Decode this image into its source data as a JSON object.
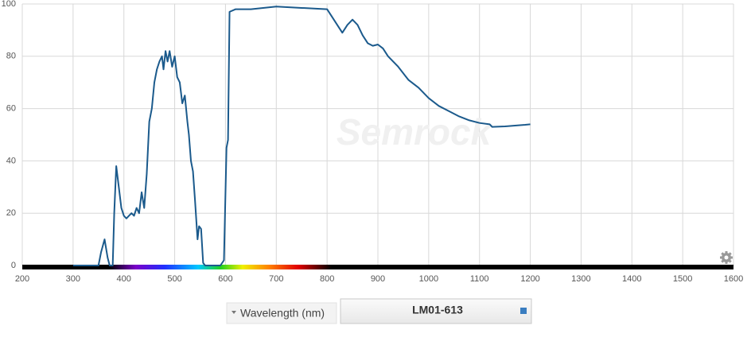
{
  "chart_data": {
    "type": "line",
    "watermark": "Semrock",
    "x_label": "Wavelength (nm)",
    "x": [
      300,
      350,
      355,
      362,
      368,
      372,
      378,
      381,
      385,
      390,
      395,
      400,
      405,
      410,
      415,
      420,
      425,
      430,
      435,
      440,
      445,
      450,
      455,
      460,
      465,
      470,
      475,
      478,
      482,
      486,
      490,
      495,
      500,
      505,
      510,
      515,
      520,
      525,
      528,
      532,
      536,
      540,
      545,
      548,
      552,
      556,
      560,
      590,
      597,
      602,
      605,
      608,
      620,
      650,
      700,
      750,
      800,
      810,
      820,
      830,
      840,
      850,
      860,
      870,
      880,
      890,
      900,
      910,
      920,
      940,
      960,
      980,
      1000,
      1020,
      1040,
      1060,
      1080,
      1100,
      1120,
      1125,
      1150,
      1170,
      1190,
      1200
    ],
    "series": [
      {
        "name": "LM01-613",
        "color": "#1b5a8c",
        "values": [
          0,
          0,
          5,
          10,
          3,
          0,
          0,
          20,
          38,
          30,
          22,
          19,
          18,
          19,
          20,
          19,
          22,
          20,
          28,
          22,
          35,
          55,
          60,
          70,
          75,
          78,
          80,
          75,
          82,
          78,
          82,
          76,
          80,
          72,
          70,
          62,
          65,
          55,
          50,
          40,
          36,
          25,
          10,
          15,
          14,
          1,
          0,
          0,
          2,
          45,
          48,
          97,
          98,
          98,
          99,
          98.5,
          98,
          95,
          92,
          89,
          92,
          94,
          92,
          88,
          85,
          84,
          84.5,
          83,
          80,
          76,
          71,
          68,
          64,
          61,
          59,
          57,
          55.5,
          54.5,
          54,
          53,
          53.2,
          53.5,
          53.8,
          54
        ]
      }
    ],
    "xlim": [
      200,
      1600
    ],
    "ylim": [
      0,
      100
    ],
    "xticks": [
      200,
      300,
      400,
      500,
      600,
      700,
      800,
      900,
      1000,
      1100,
      1200,
      1300,
      1400,
      1500,
      1600
    ],
    "yticks": [
      0,
      20,
      40,
      60,
      80,
      100
    ],
    "grid": true
  }
}
